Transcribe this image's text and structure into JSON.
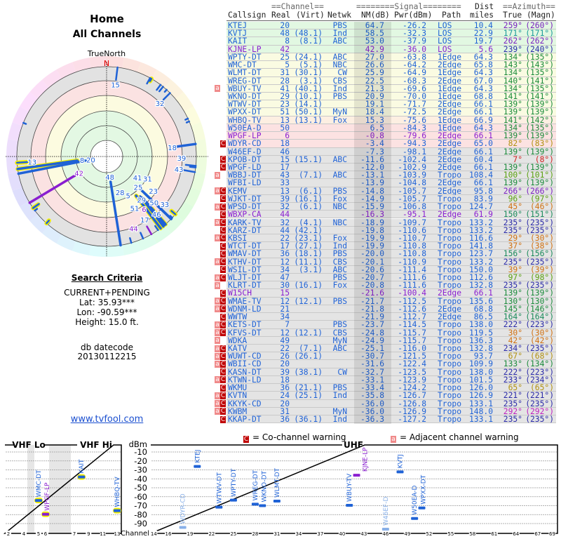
{
  "page": {
    "title": "Home",
    "subtitle": "All Channels"
  },
  "polar": {
    "north_caption": "TrueNorth",
    "north_letter": "N"
  },
  "search_criteria": {
    "heading": "Search Criteria",
    "mode": "CURRENT+PENDING",
    "lat": "Lat: 35.93***",
    "lon": "Lon: -90.59***",
    "height": "Height: 15.0 ft.",
    "db_label": "db datecode",
    "db_value": "20130112215"
  },
  "link": {
    "text": "www.tvfool.com"
  },
  "legend": {
    "co_flag": "C",
    "co_text": "= Co-channel warning",
    "adj_flag": "a",
    "adj_text": "= Adjacent channel warning"
  },
  "colors": {
    "station_blue": "#1f62d6",
    "lowpower_purple": "#8a1fd0",
    "co_channel_red": "#c00000",
    "adjacent_pink": "#f08a8a",
    "bg_los": "#e2f8e2",
    "bg_edge1": "#fafbe2",
    "bg_edge2": "#fdefe2",
    "bg_weak": "#fce2e2",
    "bg_none": "#e4e4e4",
    "vhf_outline": "#f4f000"
  },
  "table": {
    "header1": {
      "channel": "==Channel==",
      "signal": "========Signal========",
      "dist": "Dist",
      "azimuth": "==Azimuth=="
    },
    "header2": {
      "callsign": "Callsign",
      "real": "Real",
      "virt": "(Virt)",
      "netwk": "Netwk",
      "nm": "NM(dB)",
      "pwr": "Pwr(dBm)",
      "path": "Path",
      "miles": "miles",
      "true": "True",
      "magn": "(Magn)"
    },
    "rows": [
      [
        "",
        "KTEJ",
        "20",
        "",
        "PBS",
        "64.7",
        "-26.2",
        "LOS",
        "10.4",
        "259°",
        "(260°)",
        "g",
        "#7a1fc0",
        false
      ],
      [
        "",
        "KVTJ",
        "48",
        "(48.1)",
        "Ind",
        "58.5",
        "-32.3",
        "LOS",
        "22.9",
        "171°",
        "(171°)",
        "g",
        "#1a9a9a",
        false
      ],
      [
        "",
        "KAIT",
        "8",
        "(8.1)",
        "ABC",
        "53.0",
        "-37.9",
        "LOS",
        "19.7",
        "262°",
        "(262°)",
        "g",
        "#7a1fc0",
        false
      ],
      [
        "",
        "KJNE-LP",
        "42",
        "",
        "",
        "42.9",
        "-36.0",
        "LOS",
        "5.6",
        "239°",
        "(240°)",
        "g",
        "#2a2aa8",
        true
      ],
      [
        "",
        "WPTY-DT",
        "25",
        "(24.1)",
        "ABC",
        "27.0",
        "-63.8",
        "1Edge",
        "64.3",
        "134°",
        "(135°)",
        "y",
        "#1a8a3a",
        false
      ],
      [
        "",
        "WMC-DT",
        "5",
        "(5.1)",
        "NBC",
        "26.6",
        "-64.2",
        "2Edge",
        "65.8",
        "143°",
        "(143°)",
        "y",
        "#1a8a3a",
        false
      ],
      [
        "",
        "WLMT-DT",
        "31",
        "(30.1)",
        "CW",
        "25.9",
        "-64.9",
        "1Edge",
        "64.3",
        "134°",
        "(135°)",
        "y",
        "#1a8a3a",
        false
      ],
      [
        "",
        "WREG-DT",
        "28",
        "(3.1)",
        "CBS",
        "22.5",
        "-68.3",
        "2Edge",
        "67.0",
        "140°",
        "(141°)",
        "y",
        "#1a8a3a",
        false
      ],
      [
        "a",
        "WBUY-TV",
        "41",
        "(40.1)",
        "Ind",
        "21.3",
        "-69.6",
        "1Edge",
        "64.3",
        "134°",
        "(135°)",
        "y",
        "#1a8a3a",
        false
      ],
      [
        "",
        "WKNO-DT",
        "29",
        "(10.1)",
        "PBS",
        "20.9",
        "-70.0",
        "1Edge",
        "68.8",
        "141°",
        "(141°)",
        "y",
        "#1a8a3a",
        false
      ],
      [
        "",
        "WTWV-DT",
        "23",
        "(14.1)",
        "",
        "19.1",
        "-71.7",
        "2Edge",
        "66.1",
        "139°",
        "(139°)",
        "y",
        "#1a8a3a",
        false
      ],
      [
        "",
        "WPXX-DT",
        "51",
        "(50.1)",
        "MyN",
        "18.4",
        "-72.5",
        "2Edge",
        "66.1",
        "139°",
        "(139°)",
        "y",
        "#1a8a3a",
        false
      ],
      [
        "",
        "WHBQ-TV",
        "13",
        "(13.1)",
        "Fox",
        "15.3",
        "-75.6",
        "1Edge",
        "66.9",
        "141°",
        "(142°)",
        "o",
        "#1a8a3a",
        false
      ],
      [
        "",
        "W50EA-D",
        "50",
        "",
        "",
        "6.5",
        "-84.3",
        "1Edge",
        "64.3",
        "134°",
        "(135°)",
        "p",
        "#1a8a3a",
        false
      ],
      [
        "",
        "WPGF-LP",
        "6",
        "",
        "",
        "-0.8",
        "-79.6",
        "2Edge",
        "66.1",
        "139°",
        "(139°)",
        "p",
        "#1a8a3a",
        true
      ],
      [
        "C",
        "WDYR-CD",
        "18",
        "",
        "",
        "-3.4",
        "-94.3",
        "2Edge",
        "65.0",
        "82°",
        "(83°)",
        "p",
        "#b09010",
        false
      ],
      [
        "",
        "W46EF-D",
        "46",
        "",
        "",
        "-7.3",
        "-98.1",
        "2Edge",
        "66.1",
        "139°",
        "(139°)",
        "x",
        "#1a8a3a",
        false
      ],
      [
        "C",
        "KPOB-DT",
        "15",
        "(15.1)",
        "ABC",
        "-11.6",
        "-102.4",
        "2Edge",
        "60.4",
        "7°",
        "(8°)",
        "x",
        "#d02020",
        false
      ],
      [
        "C",
        "WPGF-LD",
        "17",
        "",
        "",
        "-12.0",
        "-102.9",
        "2Edge",
        "66.1",
        "139°",
        "(139°)",
        "x",
        "#1a8a3a",
        false
      ],
      [
        "a",
        "WBBJ-DT",
        "43",
        "(7.1)",
        "ABC",
        "-13.1",
        "-103.9",
        "Tropo",
        "108.4",
        "100°",
        "(101°)",
        "x",
        "#5aa010",
        false
      ],
      [
        "",
        "WFBI-LD",
        "33",
        "",
        "",
        "-13.9",
        "-104.8",
        "2Edge",
        "66.1",
        "139°",
        "(139°)",
        "x",
        "#1a8a3a",
        false
      ],
      [
        "aC",
        "KEMV",
        "13",
        "(6.1)",
        "PBS",
        "-14.8",
        "-105.7",
        "2Edge",
        "95.8",
        "266°",
        "(266°)",
        "x",
        "#7a1fc0",
        false
      ],
      [
        "C",
        "WJKT-DT",
        "39",
        "(16.1)",
        "Fox",
        "-14.9",
        "-105.7",
        "Tropo",
        "83.9",
        "96°",
        "(97°)",
        "x",
        "#5aa010",
        false
      ],
      [
        "aC",
        "WPSD-DT",
        "32",
        "(6.1)",
        "NBC",
        "-15.9",
        "-106.8",
        "Tropo",
        "124.7",
        "45°",
        "(46°)",
        "x",
        "#d07010",
        false
      ],
      [
        "C",
        "WBXP-CA",
        "44",
        "",
        "",
        "-16.3",
        "-95.1",
        "2Edge",
        "61.9",
        "150°",
        "(151°)",
        "x",
        "#1a8a5a",
        true
      ],
      [
        "aC",
        "KARK-TV",
        "32",
        "(4.1)",
        "NBC",
        "-18.9",
        "-109.7",
        "Tropo",
        "133.2",
        "235°",
        "(235°)",
        "x",
        "#2a2aa8",
        false
      ],
      [
        "C",
        "KARZ-DT",
        "44",
        "(42.1)",
        "",
        "-19.8",
        "-110.6",
        "Tropo",
        "133.2",
        "235°",
        "(235°)",
        "x",
        "#2a2aa8",
        false
      ],
      [
        "aC",
        "KBSI",
        "22",
        "(23.1)",
        "Fox",
        "-19.9",
        "-110.7",
        "Tropo",
        "116.6",
        "29°",
        "(30°)",
        "x",
        "#d07010",
        false
      ],
      [
        "C",
        "WTCT-DT",
        "17",
        "(27.1)",
        "Ind",
        "-19.9",
        "-110.8",
        "Tropo",
        "141.8",
        "37°",
        "(38°)",
        "x",
        "#d07010",
        false
      ],
      [
        "C",
        "WMAV-DT",
        "36",
        "(18.1)",
        "PBS",
        "-20.0",
        "-110.8",
        "Tropo",
        "123.7",
        "156°",
        "(156°)",
        "x",
        "#1a8a5a",
        false
      ],
      [
        "aC",
        "KTHV-DT",
        "12",
        "(11.1)",
        "CBS",
        "-20.1",
        "-110.9",
        "Tropo",
        "133.2",
        "235°",
        "(235°)",
        "x",
        "#2a2aa8",
        false
      ],
      [
        "C",
        "WSIL-DT",
        "34",
        "(3.1)",
        "ABC",
        "-20.6",
        "-111.4",
        "Tropo",
        "150.0",
        "39°",
        "(39°)",
        "x",
        "#d07010",
        false
      ],
      [
        "aC",
        "WLJT-DT",
        "47",
        "",
        "PBS",
        "-20.7",
        "-111.6",
        "Tropo",
        "112.6",
        "97°",
        "(98°)",
        "x",
        "#5aa010",
        false
      ],
      [
        "a",
        "KLRT-DT",
        "30",
        "(16.1)",
        "Fox",
        "-20.8",
        "-111.6",
        "Tropo",
        "132.8",
        "235°",
        "(235°)",
        "x",
        "#2a2aa8",
        false
      ],
      [
        "C",
        "W15CH",
        "15",
        "",
        "",
        "-21.6",
        "-100.4",
        "2Edge",
        "66.1",
        "139°",
        "(139°)",
        "x",
        "#1a8a3a",
        true
      ],
      [
        "aC",
        "WMAE-TV",
        "12",
        "(12.1)",
        "PBS",
        "-21.7",
        "-112.5",
        "Tropo",
        "135.6",
        "130°",
        "(130°)",
        "x",
        "#1a8a3a",
        false
      ],
      [
        "aC",
        "WDNM-LD",
        "21",
        "",
        "",
        "-21.8",
        "-112.6",
        "2Edge",
        "68.8",
        "145°",
        "(146°)",
        "x",
        "#1a8a3a",
        false
      ],
      [
        "C",
        "WWTW",
        "34",
        "",
        "",
        "-21.9",
        "-112.7",
        "2Edge",
        "86.5",
        "164°",
        "(164°)",
        "x",
        "#1a8a5a",
        false
      ],
      [
        "aC",
        "KETS-DT",
        "7",
        "",
        "PBS",
        "-23.7",
        "-114.5",
        "Tropo",
        "138.0",
        "222°",
        "(223°)",
        "x",
        "#2a2aa8",
        false
      ],
      [
        "aC",
        "KFVS-DT",
        "12",
        "(12.1)",
        "CBS",
        "-24.8",
        "-115.7",
        "Tropo",
        "119.5",
        "30°",
        "(30°)",
        "x",
        "#d07010",
        false
      ],
      [
        "a",
        "WDKA",
        "49",
        "",
        "MyN",
        "-24.9",
        "-115.7",
        "Tropo",
        "136.3",
        "42°",
        "(42°)",
        "x",
        "#d07010",
        false
      ],
      [
        "aC",
        "KATV",
        "22",
        "(7.1)",
        "ABC",
        "-25.1",
        "-116.0",
        "Tropo",
        "132.8",
        "234°",
        "(235°)",
        "x",
        "#2a2aa8",
        false
      ],
      [
        "aC",
        "WUWT-CD",
        "26",
        "(26.1)",
        "",
        "-30.7",
        "-121.5",
        "Tropo",
        "93.7",
        "67°",
        "(68°)",
        "x",
        "#b09010",
        false
      ],
      [
        "aC",
        "WBII-CD",
        "20",
        "",
        "",
        "-31.6",
        "-122.4",
        "Tropo",
        "109.9",
        "133°",
        "(134°)",
        "x",
        "#1a8a3a",
        false
      ],
      [
        "C",
        "KASN-DT",
        "39",
        "(38.1)",
        "CW",
        "-32.7",
        "-123.5",
        "Tropo",
        "138.0",
        "222°",
        "(223°)",
        "x",
        "#2a2aa8",
        false
      ],
      [
        "aC",
        "KTWN-LD",
        "18",
        "",
        "",
        "-33.1",
        "-123.9",
        "Tropo",
        "101.5",
        "233°",
        "(234°)",
        "x",
        "#2a2aa8",
        false
      ],
      [
        "C",
        "WKMU",
        "36",
        "(21.1)",
        "PBS",
        "-33.4",
        "-124.2",
        "Tropo",
        "126.0",
        "65°",
        "(65°)",
        "x",
        "#b09010",
        false
      ],
      [
        "aC",
        "KVTN",
        "24",
        "(25.1)",
        "Ind",
        "-35.8",
        "-126.7",
        "Tropo",
        "126.9",
        "221°",
        "(221°)",
        "x",
        "#2a2aa8",
        false
      ],
      [
        "aC",
        "KKYK-CD",
        "20",
        "",
        "",
        "-36.0",
        "-126.8",
        "Tropo",
        "133.1",
        "235°",
        "(235°)",
        "x",
        "#2a2aa8",
        false
      ],
      [
        "aC",
        "KWBM",
        "31",
        "",
        "MyN",
        "-36.0",
        "-126.9",
        "Tropo",
        "148.0",
        "292°",
        "(292°)",
        "x",
        "#c020c0",
        false
      ],
      [
        "C",
        "KKAP-DT",
        "36",
        "(36.1)",
        "Ind",
        "-36.3",
        "-127.2",
        "Tropo",
        "133.1",
        "235°",
        "(235°)",
        "x",
        "#2a2aa8",
        false
      ]
    ]
  },
  "spectrum": {
    "vhf_lo_label": "VHF Lo",
    "vhf_hi_label": "VHF Hi",
    "uhf_label": "UHF",
    "unit_label": "dBm",
    "channel_label": "Channel",
    "dbm_ticks": [
      "-10",
      "-20",
      "-30",
      "-40",
      "-50",
      "-60",
      "-70",
      "-80",
      "-90"
    ],
    "vhf_channel_ticks": [
      "2",
      "4",
      "5",
      "6",
      "7",
      "9",
      "11",
      "13"
    ],
    "uhf_channel_ticks": [
      "14",
      "16",
      "19",
      "22",
      "25",
      "28",
      "31",
      "34",
      "37",
      "40",
      "43",
      "46",
      "49",
      "52",
      "55",
      "58",
      "61",
      "64",
      "67",
      "69"
    ]
  }
}
